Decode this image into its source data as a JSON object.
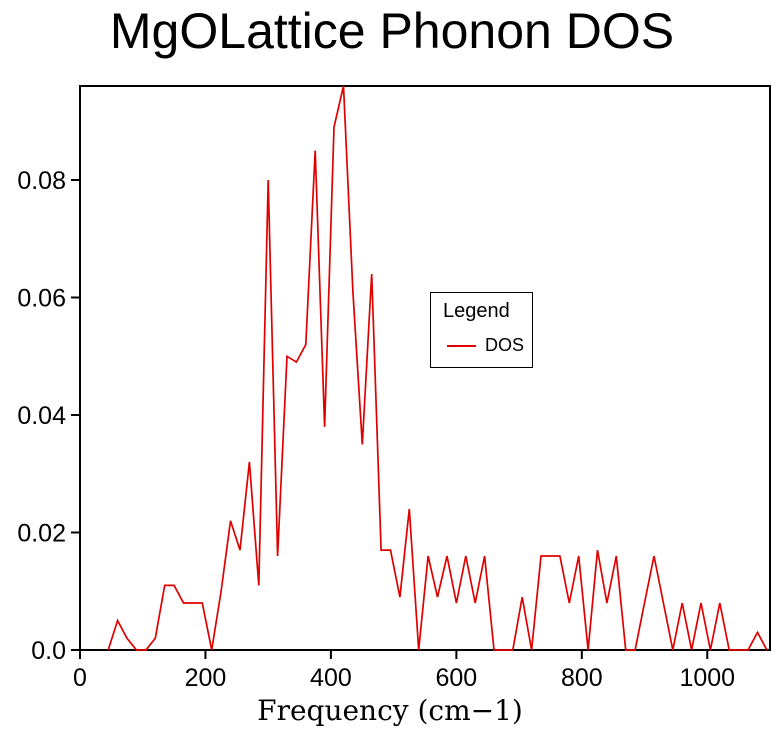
{
  "legend": {
    "title": "Legend",
    "entries": [
      {
        "label": "DOS",
        "color": "#e00000"
      }
    ]
  },
  "colors": {
    "line": "#e00000",
    "frame": "#000000",
    "background": "#ffffff",
    "text": "#000000"
  },
  "chart_data": {
    "type": "line",
    "title": "MgOLattice Phonon DOS",
    "xlabel": "Frequency (cm−1)",
    "ylabel": "",
    "xlim": [
      0,
      1100
    ],
    "ylim": [
      0,
      0.096
    ],
    "grid": false,
    "legend_position": "inside-center-right",
    "x_ticks": {
      "values": [
        0,
        200,
        400,
        600,
        800,
        1000
      ],
      "labels": [
        "0",
        "200",
        "400",
        "600",
        "800",
        "1000"
      ]
    },
    "y_ticks": {
      "values": [
        0,
        0.02,
        0.04,
        0.06,
        0.08
      ],
      "labels": [
        "0.0",
        "0.02",
        "0.04",
        "0.06",
        "0.08"
      ]
    },
    "series": [
      {
        "name": "DOS",
        "color": "#e00000",
        "x": [
          45,
          60,
          75,
          90,
          105,
          120,
          135,
          150,
          165,
          180,
          195,
          210,
          225,
          240,
          255,
          270,
          285,
          300,
          315,
          330,
          345,
          360,
          375,
          390,
          405,
          420,
          435,
          450,
          465,
          480,
          495,
          510,
          525,
          540,
          555,
          570,
          585,
          600,
          615,
          630,
          645,
          660,
          675,
          690,
          705,
          720,
          735,
          750,
          765,
          780,
          795,
          810,
          825,
          840,
          855,
          870,
          885,
          900,
          915,
          930,
          945,
          960,
          975,
          990,
          1005,
          1020,
          1035,
          1050,
          1065,
          1080,
          1095
        ],
        "y": [
          0,
          0.005,
          0.002,
          0,
          0,
          0.002,
          0.011,
          0.011,
          0.008,
          0.008,
          0.008,
          0,
          0.01,
          0.022,
          0.017,
          0.032,
          0.011,
          0.08,
          0.016,
          0.05,
          0.049,
          0.052,
          0.085,
          0.038,
          0.089,
          0.096,
          0.061,
          0.035,
          0.064,
          0.017,
          0.017,
          0.009,
          0.024,
          0,
          0.016,
          0.009,
          0.016,
          0.008,
          0.016,
          0.008,
          0.016,
          0,
          0,
          0,
          0.009,
          0,
          0.016,
          0.016,
          0.016,
          0.008,
          0.016,
          0,
          0.017,
          0.008,
          0.016,
          0,
          0,
          0.008,
          0.016,
          0.008,
          0,
          0.008,
          0,
          0.008,
          0,
          0.008,
          0,
          0,
          0,
          0.003,
          0
        ]
      }
    ]
  }
}
